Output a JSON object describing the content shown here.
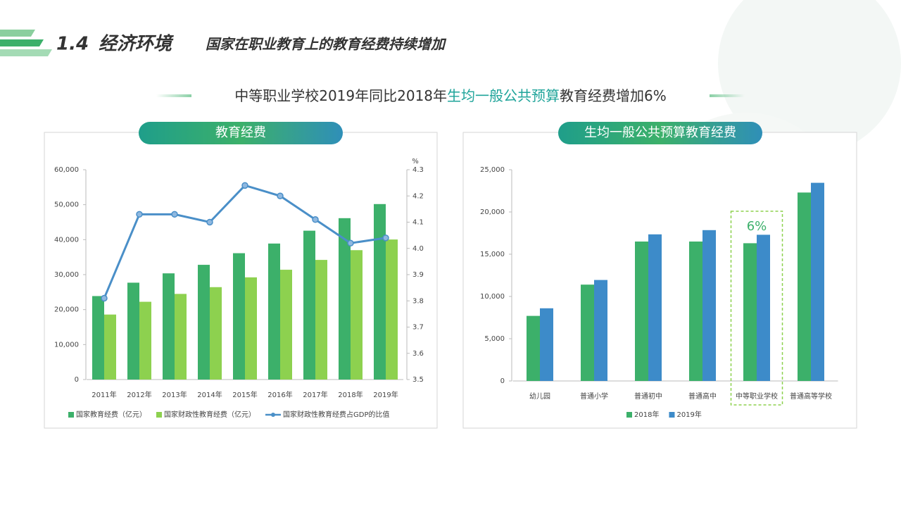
{
  "header": {
    "section": "1.4",
    "title": "经济环境",
    "subtitle": "国家在职业教育上的教育经费持续增加"
  },
  "headline": {
    "parts": [
      "中等职业学校2019年同比2018年",
      "生均一般公共预算",
      "教育经费增加6%"
    ],
    "highlight_color": "#1fa49a"
  },
  "chart_data": [
    {
      "type": "bar",
      "title": "教育经费",
      "categories": [
        "2011年",
        "2012年",
        "2013年",
        "2014年",
        "2015年",
        "2016年",
        "2017年",
        "2018年",
        "2019年"
      ],
      "series": [
        {
          "name": "国家教育经费（亿元）",
          "color": "#3cb06a",
          "values": [
            23869,
            27696,
            30365,
            32806,
            36129,
            38888,
            42562,
            46143,
            50175
          ]
        },
        {
          "name": "国家财政性教育经费（亿元）",
          "color": "#8dd14f",
          "values": [
            18587,
            22236,
            24488,
            26421,
            29221,
            31396,
            34208,
            36996,
            40047
          ]
        },
        {
          "name": "国家财政性教育经费占GDP的比值",
          "color": "#4a8fc8",
          "type": "line",
          "axis": "y2",
          "values": [
            3.81,
            4.13,
            4.13,
            4.1,
            4.24,
            4.2,
            4.11,
            4.02,
            4.04
          ]
        }
      ],
      "ylim": [
        0,
        60000
      ],
      "yticks": [
        0,
        {
          "value": 10000,
          "label": "10,000"
        },
        {
          "value": 20000,
          "label": "20,000"
        },
        {
          "value": 30000,
          "label": "30,000"
        },
        {
          "value": 40000,
          "label": "40,000"
        },
        {
          "value": 50000,
          "label": "50,000"
        },
        {
          "value": 60000,
          "label": "60,000"
        }
      ],
      "y2lim": [
        3.5,
        4.3
      ],
      "y2ticks": [
        3.5,
        3.6,
        3.7,
        3.8,
        3.9,
        {
          "value": 4,
          "label": "4.0"
        },
        4.1,
        4.2,
        4.3
      ],
      "y2_label": "%",
      "legend": "bottom"
    },
    {
      "type": "bar",
      "title": "生均一般公共预算教育经费",
      "categories": [
        "幼儿园",
        "普通小学",
        "普通初中",
        "普通高中",
        "中等职业学校",
        "普通高等学校"
      ],
      "series": [
        {
          "name": "2018年",
          "color": "#3cb06a",
          "values": [
            7700,
            11400,
            16500,
            16500,
            16300,
            22300
          ]
        },
        {
          "name": "2019年",
          "color": "#3d8bc9",
          "values": [
            8600,
            11950,
            17350,
            17850,
            17300,
            23450
          ]
        }
      ],
      "ylim": [
        0,
        25000
      ],
      "yticks": [
        0,
        {
          "value": 5000,
          "label": "5,000"
        },
        {
          "value": 10000,
          "label": "10,000"
        },
        {
          "value": 15000,
          "label": "15,000"
        },
        {
          "value": 20000,
          "label": "20,000"
        },
        {
          "value": 25000,
          "label": "25,000"
        }
      ],
      "annotation": {
        "text": "6%",
        "category": "中等职业学校"
      },
      "legend": "bottom"
    }
  ]
}
